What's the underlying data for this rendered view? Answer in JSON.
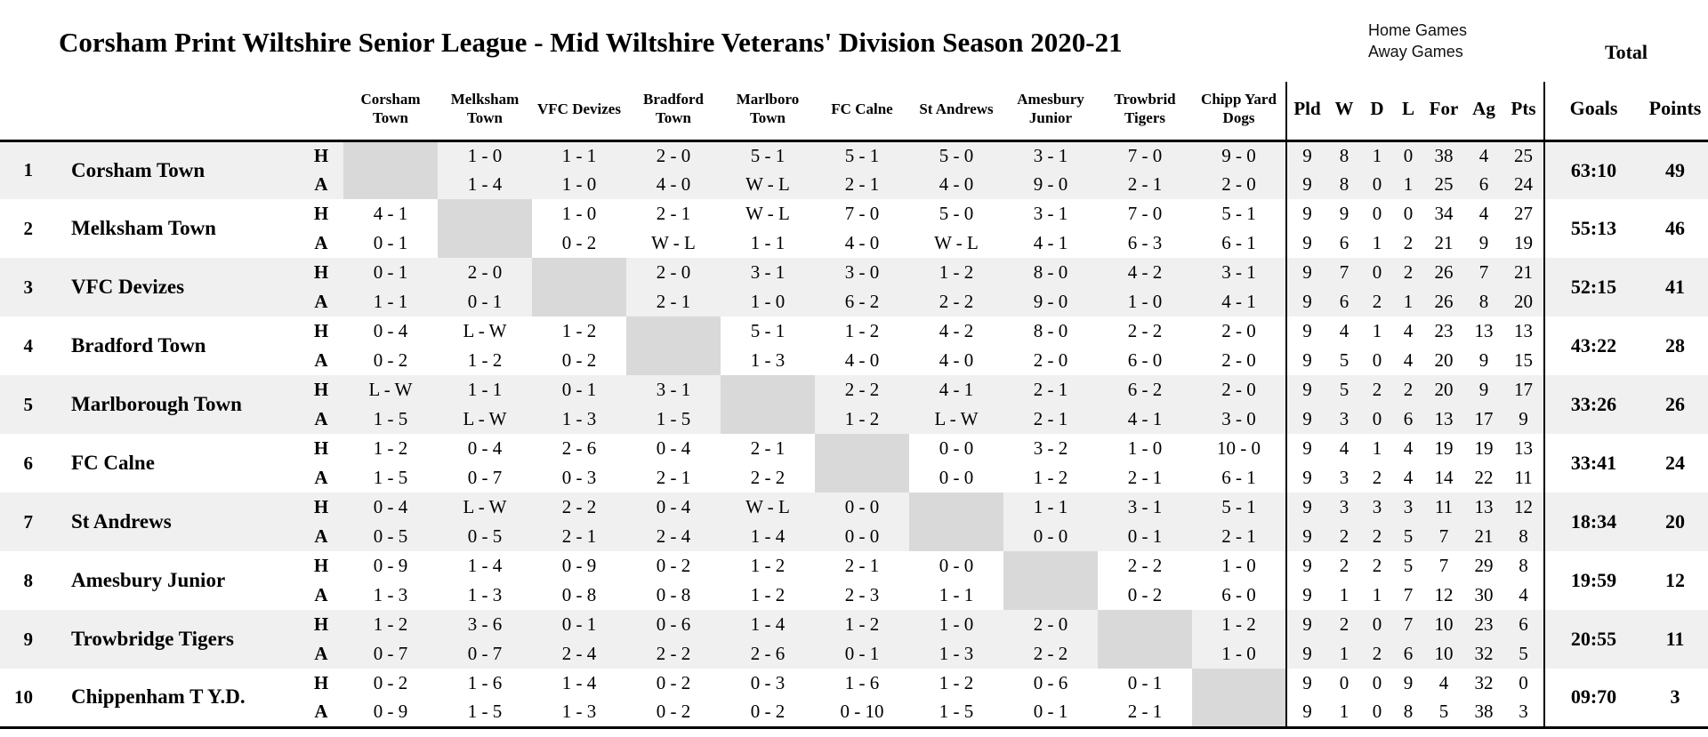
{
  "header": {
    "title": "Corsham Print Wiltshire Senior League - Mid Wiltshire Veterans' Division Season 2020-21",
    "legend": {
      "home": "Home Games",
      "away": "Away Games"
    },
    "total_label": "Total"
  },
  "table": {
    "opponents": [
      "Corsham Town",
      "Melksham Town",
      "VFC Devizes",
      "Bradford Town",
      "Marlboro Town",
      "FC Calne",
      "St Andrews",
      "Amesbury Junior",
      "Trowbrid Tigers",
      "Chipp Yard Dogs"
    ],
    "stats_headers": [
      "Pld",
      "W",
      "D",
      "L",
      "For",
      "Ag",
      "Pts"
    ],
    "goals_header": "Goals",
    "points_header": "Points",
    "home_label": "H",
    "away_label": "A",
    "teams": [
      {
        "rank": "1",
        "name": "Corsham Town",
        "home_results": [
          "",
          "1 - 0",
          "1 - 1",
          "2 - 0",
          "5 - 1",
          "5 - 1",
          "5 - 0",
          "3 - 1",
          "7 - 0",
          "9 - 0"
        ],
        "home_stats": [
          "9",
          "8",
          "1",
          "0",
          "38",
          "4",
          "25"
        ],
        "away_results": [
          "",
          "1 - 4",
          "1 - 0",
          "4 - 0",
          "W - L",
          "2 - 1",
          "4 - 0",
          "9 - 0",
          "2 - 1",
          "2 - 0"
        ],
        "away_stats": [
          "9",
          "8",
          "0",
          "1",
          "25",
          "6",
          "24"
        ],
        "goals": "63:10",
        "points": "49"
      },
      {
        "rank": "2",
        "name": "Melksham Town",
        "home_results": [
          "4 - 1",
          "",
          "1 - 0",
          "2 - 1",
          "W - L",
          "7 - 0",
          "5 - 0",
          "3 - 1",
          "7 - 0",
          "5 - 1"
        ],
        "home_stats": [
          "9",
          "9",
          "0",
          "0",
          "34",
          "4",
          "27"
        ],
        "away_results": [
          "0 - 1",
          "",
          "0 - 2",
          "W - L",
          "1 - 1",
          "4 - 0",
          "W - L",
          "4 - 1",
          "6 - 3",
          "6 - 1"
        ],
        "away_stats": [
          "9",
          "6",
          "1",
          "2",
          "21",
          "9",
          "19"
        ],
        "goals": "55:13",
        "points": "46"
      },
      {
        "rank": "3",
        "name": "VFC Devizes",
        "home_results": [
          "0 - 1",
          "2 - 0",
          "",
          "2 - 0",
          "3 - 1",
          "3 - 0",
          "1 - 2",
          "8 - 0",
          "4 - 2",
          "3 - 1"
        ],
        "home_stats": [
          "9",
          "7",
          "0",
          "2",
          "26",
          "7",
          "21"
        ],
        "away_results": [
          "1 - 1",
          "0 - 1",
          "",
          "2 - 1",
          "1 - 0",
          "6 - 2",
          "2 - 2",
          "9 - 0",
          "1 - 0",
          "4 - 1"
        ],
        "away_stats": [
          "9",
          "6",
          "2",
          "1",
          "26",
          "8",
          "20"
        ],
        "goals": "52:15",
        "points": "41"
      },
      {
        "rank": "4",
        "name": "Bradford Town",
        "home_results": [
          "0 - 4",
          "L - W",
          "1 - 2",
          "",
          "5 - 1",
          "1 - 2",
          "4 - 2",
          "8 - 0",
          "2 - 2",
          "2 - 0"
        ],
        "home_stats": [
          "9",
          "4",
          "1",
          "4",
          "23",
          "13",
          "13"
        ],
        "away_results": [
          "0 - 2",
          "1 - 2",
          "0 - 2",
          "",
          "1 - 3",
          "4 - 0",
          "4 - 0",
          "2 - 0",
          "6 - 0",
          "2 - 0"
        ],
        "away_stats": [
          "9",
          "5",
          "0",
          "4",
          "20",
          "9",
          "15"
        ],
        "goals": "43:22",
        "points": "28"
      },
      {
        "rank": "5",
        "name": "Marlborough Town",
        "home_results": [
          "L - W",
          "1 - 1",
          "0 - 1",
          "3 - 1",
          "",
          "2 - 2",
          "4 - 1",
          "2 - 1",
          "6 - 2",
          "2 - 0"
        ],
        "home_stats": [
          "9",
          "5",
          "2",
          "2",
          "20",
          "9",
          "17"
        ],
        "away_results": [
          "1 - 5",
          "L - W",
          "1 - 3",
          "1 - 5",
          "",
          "1 - 2",
          "L - W",
          "2 - 1",
          "4 - 1",
          "3 - 0"
        ],
        "away_stats": [
          "9",
          "3",
          "0",
          "6",
          "13",
          "17",
          "9"
        ],
        "goals": "33:26",
        "points": "26"
      },
      {
        "rank": "6",
        "name": "FC Calne",
        "home_results": [
          "1 - 2",
          "0 - 4",
          "2 - 6",
          "0 - 4",
          "2 - 1",
          "",
          "0 - 0",
          "3 - 2",
          "1 - 0",
          "10 - 0"
        ],
        "home_stats": [
          "9",
          "4",
          "1",
          "4",
          "19",
          "19",
          "13"
        ],
        "away_results": [
          "1 - 5",
          "0 - 7",
          "0 - 3",
          "2 - 1",
          "2 - 2",
          "",
          "0 - 0",
          "1 - 2",
          "2 - 1",
          "6 - 1"
        ],
        "away_stats": [
          "9",
          "3",
          "2",
          "4",
          "14",
          "22",
          "11"
        ],
        "goals": "33:41",
        "points": "24"
      },
      {
        "rank": "7",
        "name": "St Andrews",
        "home_results": [
          "0 - 4",
          "L - W",
          "2 - 2",
          "0 - 4",
          "W - L",
          "0 - 0",
          "",
          "1 - 1",
          "3 - 1",
          "5 - 1"
        ],
        "home_stats": [
          "9",
          "3",
          "3",
          "3",
          "11",
          "13",
          "12"
        ],
        "away_results": [
          "0 - 5",
          "0 - 5",
          "2 - 1",
          "2 - 4",
          "1 - 4",
          "0 - 0",
          "",
          "0 - 0",
          "0 - 1",
          "2 - 1"
        ],
        "away_stats": [
          "9",
          "2",
          "2",
          "5",
          "7",
          "21",
          "8"
        ],
        "goals": "18:34",
        "points": "20"
      },
      {
        "rank": "8",
        "name": "Amesbury Junior",
        "home_results": [
          "0 - 9",
          "1 - 4",
          "0 - 9",
          "0 - 2",
          "1 - 2",
          "2 - 1",
          "0 - 0",
          "",
          "2 - 2",
          "1 - 0"
        ],
        "home_stats": [
          "9",
          "2",
          "2",
          "5",
          "7",
          "29",
          "8"
        ],
        "away_results": [
          "1 - 3",
          "1 - 3",
          "0 - 8",
          "0 - 8",
          "1 - 2",
          "2 - 3",
          "1 - 1",
          "",
          "0 - 2",
          "6 - 0"
        ],
        "away_stats": [
          "9",
          "1",
          "1",
          "7",
          "12",
          "30",
          "4"
        ],
        "goals": "19:59",
        "points": "12"
      },
      {
        "rank": "9",
        "name": "Trowbridge Tigers",
        "home_results": [
          "1 - 2",
          "3 - 6",
          "0 - 1",
          "0 - 6",
          "1 - 4",
          "1 - 2",
          "1 - 0",
          "2 - 0",
          "",
          "1 - 2"
        ],
        "home_stats": [
          "9",
          "2",
          "0",
          "7",
          "10",
          "23",
          "6"
        ],
        "away_results": [
          "0 - 7",
          "0 - 7",
          "2 - 4",
          "2 - 2",
          "2 - 6",
          "0 - 1",
          "1 - 3",
          "2 - 2",
          "",
          "1 - 0"
        ],
        "away_stats": [
          "9",
          "1",
          "2",
          "6",
          "10",
          "32",
          "5"
        ],
        "goals": "20:55",
        "points": "11"
      },
      {
        "rank": "10",
        "name": "Chippenham T Y.D.",
        "home_results": [
          "0 - 2",
          "1 - 6",
          "1 - 4",
          "0 - 2",
          "0 - 3",
          "1 - 6",
          "1 - 2",
          "0 - 6",
          "0 - 1",
          ""
        ],
        "home_stats": [
          "9",
          "0",
          "0",
          "9",
          "4",
          "32",
          "0"
        ],
        "away_results": [
          "0 - 9",
          "1 - 5",
          "1 - 3",
          "0 - 2",
          "0 - 2",
          "0 - 10",
          "1 - 5",
          "0 - 1",
          "2 - 1",
          ""
        ],
        "away_stats": [
          "9",
          "1",
          "0",
          "8",
          "5",
          "38",
          "3"
        ],
        "goals": "09:70",
        "points": "3"
      }
    ]
  },
  "colors": {
    "diagonal_cell": "#d9d9d9",
    "band_row": "#f0f0f0",
    "text": "#000000",
    "background": "#ffffff"
  }
}
